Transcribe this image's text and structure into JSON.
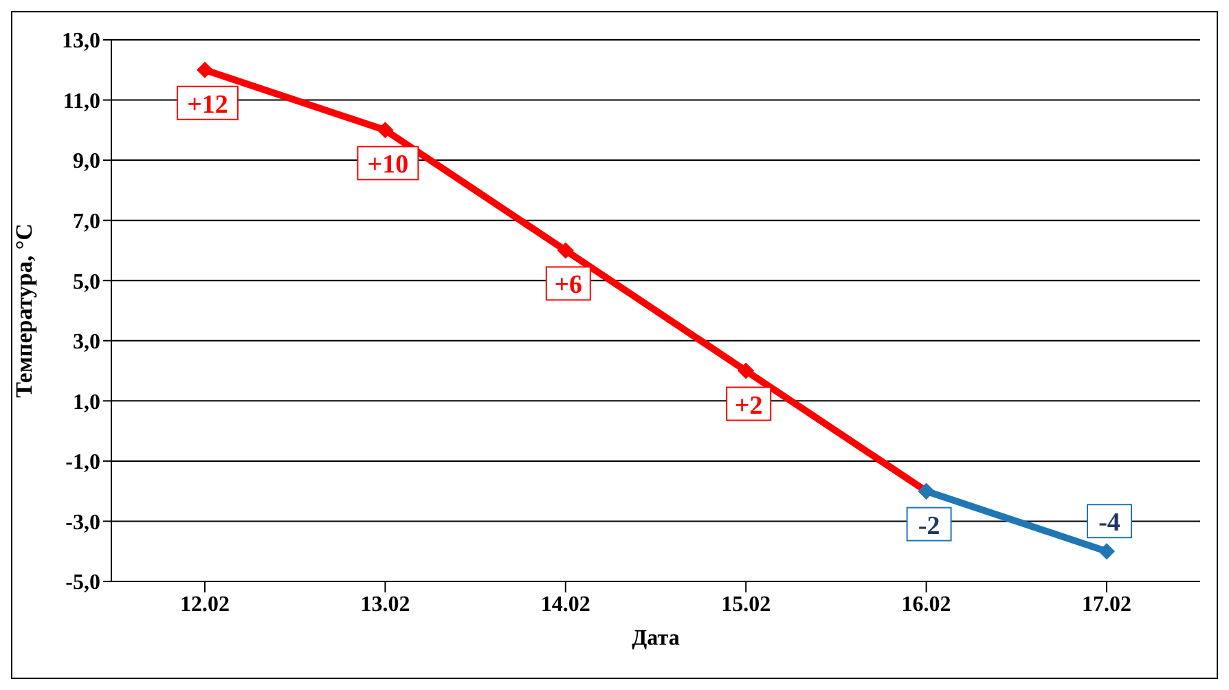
{
  "chart_data": {
    "type": "line",
    "xlabel": "Дата",
    "ylabel": "Температура,  °С",
    "categories": [
      "12.02",
      "13.02",
      "14.02",
      "15.02",
      "16.02",
      "17.02"
    ],
    "series": [
      {
        "color": "#ff0000",
        "values": [
          12,
          10,
          6,
          2,
          -2,
          null
        ],
        "value_labels": [
          "+12",
          "+10",
          "+6",
          "+2",
          null,
          null
        ]
      },
      {
        "color": "#1f77b4",
        "values": [
          null,
          null,
          null,
          null,
          -2,
          -4
        ],
        "value_labels": [
          null,
          null,
          null,
          null,
          "-2",
          "-4"
        ]
      }
    ],
    "ylim": [
      -5,
      13
    ],
    "yticks": [
      {
        "value": -5,
        "label": "-5,0"
      },
      {
        "value": -3,
        "label": "-3,0"
      },
      {
        "value": -1,
        "label": "-1,0"
      },
      {
        "value": 1,
        "label": "1,0"
      },
      {
        "value": 3,
        "label": "3,0"
      },
      {
        "value": 5,
        "label": "5,0"
      },
      {
        "value": 7,
        "label": "7,0"
      },
      {
        "value": 9,
        "label": "9,0"
      },
      {
        "value": 11,
        "label": "11,0"
      },
      {
        "value": 13,
        "label": "13,0"
      }
    ],
    "grid": "y",
    "marker": "diamond",
    "line_style": "solid"
  }
}
